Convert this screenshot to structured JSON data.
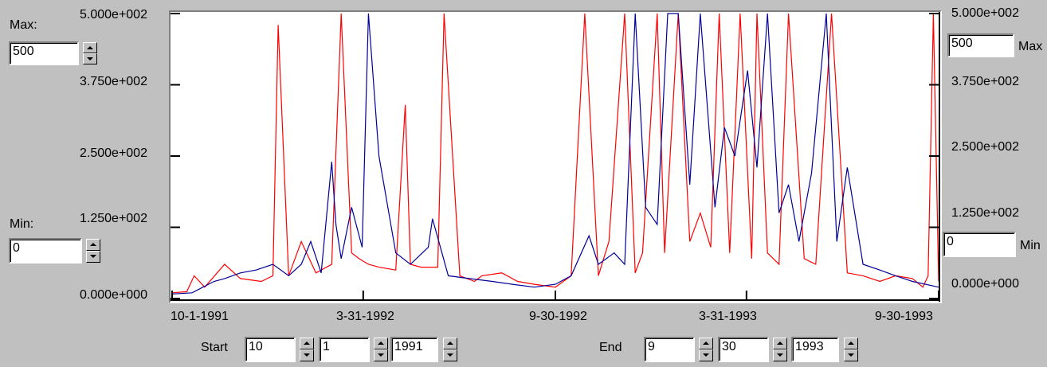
{
  "left_axis": {
    "max_label": "Max:",
    "max_value": "500",
    "min_label": "Min:",
    "min_value": "0",
    "ticks": [
      "5.000e+002",
      "3.750e+002",
      "2.500e+002",
      "1.250e+002",
      "0.000e+000"
    ]
  },
  "right_axis": {
    "max_label": "Max",
    "max_value": "500",
    "min_label": "Min",
    "min_value": "0",
    "ticks": [
      "5.000e+002",
      "3.750e+002",
      "2.500e+002",
      "1.250e+002",
      "0.000e+000"
    ]
  },
  "x_axis": {
    "ticks": [
      "10-1-1991",
      "3-31-1992",
      "9-30-1992",
      "3-31-1993",
      "9-30-1993"
    ]
  },
  "start": {
    "label": "Start",
    "month": "10",
    "day": "1",
    "year": "1991"
  },
  "end": {
    "label": "End",
    "month": "9",
    "day": "30",
    "year": "1993"
  },
  "colors": {
    "red_series": "#ff0000",
    "blue_series": "#000099",
    "background": "#c0c0c0"
  },
  "chart_data": {
    "type": "line",
    "xlim": [
      "1991-10-01",
      "1993-09-30"
    ],
    "ylim": [
      0,
      500
    ],
    "y_ticks": [
      0,
      125,
      250,
      375,
      500
    ],
    "x_ticks": [
      "1991-10-01",
      "1992-03-31",
      "1992-09-30",
      "1993-03-31",
      "1993-09-30"
    ],
    "grid": false,
    "series": [
      {
        "color": "#ff0000",
        "x": [
          "1991-10-01",
          "1991-10-15",
          "1991-10-22",
          "1991-11-01",
          "1991-11-20",
          "1991-12-05",
          "1991-12-25",
          "1992-01-05",
          "1992-01-10",
          "1992-01-20",
          "1992-02-01",
          "1992-02-15",
          "1992-03-01",
          "1992-03-10",
          "1992-03-20",
          "1992-03-27",
          "1992-04-05",
          "1992-04-15",
          "1992-05-01",
          "1992-05-10",
          "1992-05-15",
          "1992-05-25",
          "1992-06-10",
          "1992-06-16",
          "1992-07-01",
          "1992-07-15",
          "1992-07-22",
          "1992-08-10",
          "1992-08-25",
          "1992-09-10",
          "1992-09-30",
          "1992-10-15",
          "1992-10-28",
          "1992-11-10",
          "1992-11-20",
          "1992-12-05",
          "1992-12-15",
          "1992-12-22",
          "1993-01-05",
          "1993-01-12",
          "1993-01-25",
          "1993-02-05",
          "1993-02-15",
          "1993-02-25",
          "1993-03-05",
          "1993-03-15",
          "1993-03-25",
          "1993-04-05",
          "1993-04-10",
          "1993-04-20",
          "1993-05-01",
          "1993-05-10",
          "1993-05-25",
          "1993-06-05",
          "1993-06-20",
          "1993-07-05",
          "1993-07-20",
          "1993-08-05",
          "1993-08-20",
          "1993-09-05",
          "1993-09-15",
          "1993-09-20",
          "1993-09-25",
          "1993-09-30"
        ],
        "values": [
          10,
          12,
          40,
          20,
          60,
          35,
          30,
          40,
          480,
          40,
          100,
          45,
          60,
          500,
          80,
          70,
          60,
          55,
          50,
          340,
          60,
          55,
          55,
          500,
          40,
          30,
          40,
          45,
          30,
          25,
          20,
          40,
          500,
          40,
          100,
          500,
          45,
          80,
          500,
          80,
          500,
          100,
          150,
          90,
          500,
          80,
          500,
          70,
          500,
          80,
          60,
          500,
          70,
          60,
          500,
          45,
          40,
          30,
          40,
          35,
          20,
          40,
          500,
          30
        ]
      },
      {
        "color": "#000099",
        "x": [
          "1991-10-01",
          "1991-10-20",
          "1991-11-10",
          "1991-11-20",
          "1991-12-05",
          "1991-12-20",
          "1992-01-05",
          "1992-01-20",
          "1992-02-01",
          "1992-02-10",
          "1992-02-20",
          "1992-03-01",
          "1992-03-05",
          "1992-03-10",
          "1992-03-20",
          "1992-03-30",
          "1992-04-05",
          "1992-04-15",
          "1992-05-01",
          "1992-05-15",
          "1992-06-01",
          "1992-06-05",
          "1992-06-20",
          "1992-07-10",
          "1992-08-01",
          "1992-08-20",
          "1992-09-10",
          "1992-09-30",
          "1992-10-15",
          "1992-11-01",
          "1992-11-10",
          "1992-11-25",
          "1992-12-05",
          "1992-12-15",
          "1992-12-25",
          "1993-01-05",
          "1993-01-15",
          "1993-01-25",
          "1993-02-05",
          "1993-02-15",
          "1993-03-01",
          "1993-03-10",
          "1993-03-20",
          "1993-04-01",
          "1993-04-10",
          "1993-04-20",
          "1993-05-01",
          "1993-05-10",
          "1993-05-20",
          "1993-06-01",
          "1993-06-15",
          "1993-06-25",
          "1993-07-05",
          "1993-07-20",
          "1993-08-05",
          "1993-08-20",
          "1993-09-05",
          "1993-09-30"
        ],
        "values": [
          8,
          10,
          30,
          35,
          45,
          50,
          60,
          40,
          60,
          100,
          45,
          240,
          130,
          70,
          160,
          90,
          500,
          250,
          80,
          60,
          90,
          140,
          40,
          35,
          30,
          25,
          20,
          25,
          40,
          110,
          60,
          80,
          60,
          500,
          160,
          130,
          500,
          500,
          200,
          500,
          160,
          300,
          250,
          400,
          230,
          500,
          150,
          200,
          100,
          220,
          500,
          100,
          230,
          60,
          50,
          40,
          30,
          20
        ]
      }
    ]
  }
}
